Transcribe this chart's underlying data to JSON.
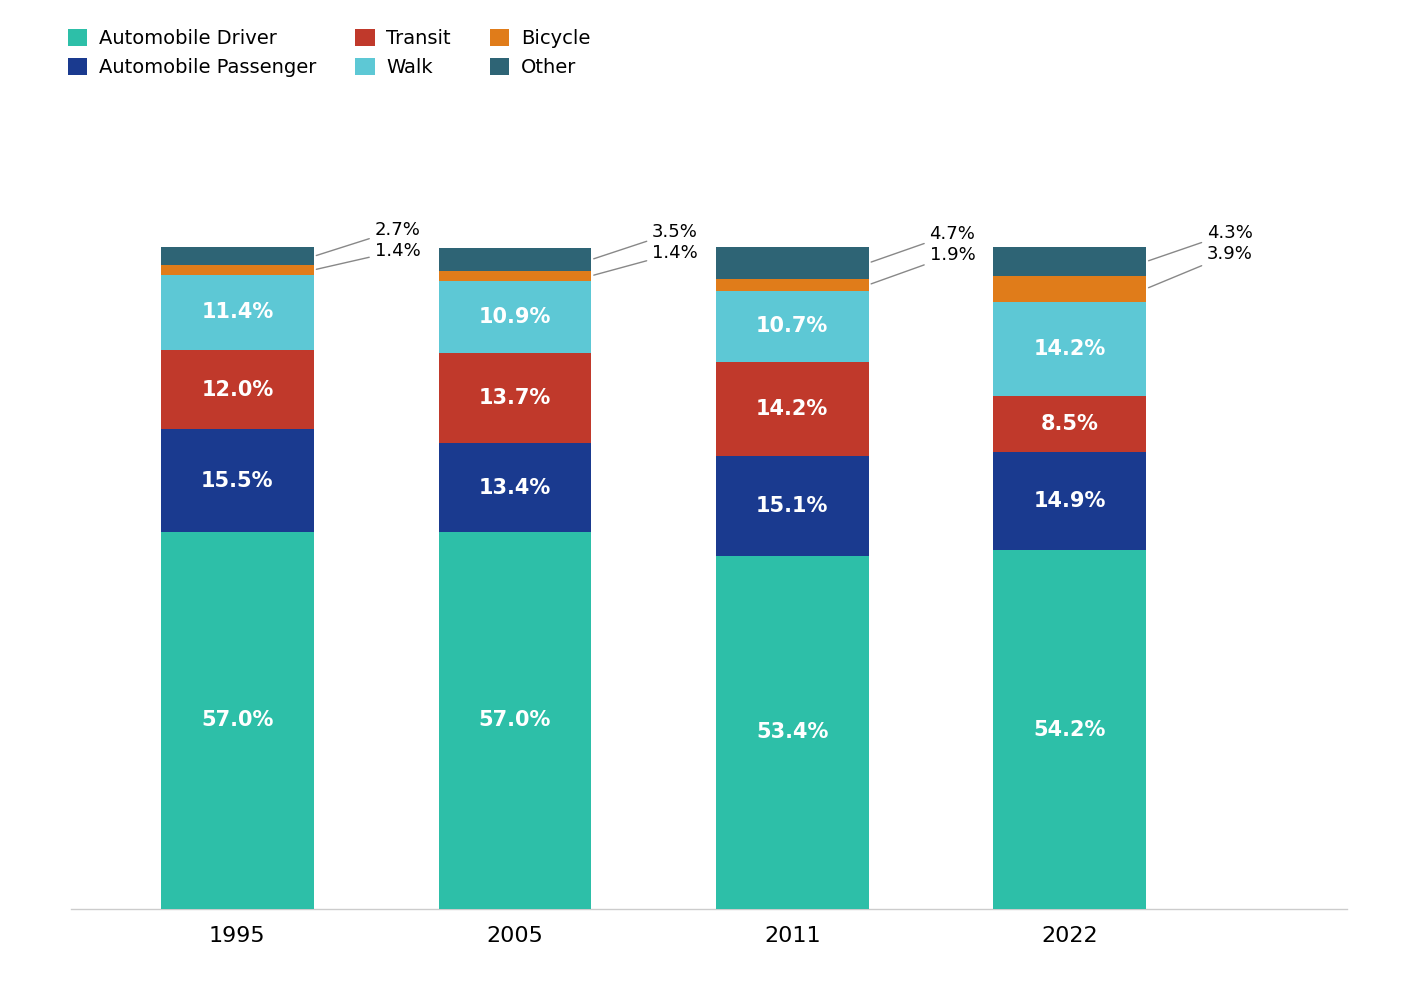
{
  "years": [
    "1995",
    "2005",
    "2011",
    "2022"
  ],
  "categories": [
    "Automobile Driver",
    "Automobile Passenger",
    "Transit",
    "Walk",
    "Bicycle",
    "Other"
  ],
  "values": {
    "Automobile Driver": [
      57.0,
      57.0,
      53.4,
      54.2
    ],
    "Automobile Passenger": [
      15.5,
      13.4,
      15.1,
      14.9
    ],
    "Transit": [
      12.0,
      13.7,
      14.2,
      8.5
    ],
    "Walk": [
      11.4,
      10.9,
      10.7,
      14.2
    ],
    "Bicycle": [
      1.4,
      1.4,
      1.9,
      3.9
    ],
    "Other": [
      2.7,
      3.5,
      4.7,
      4.3
    ]
  },
  "colors": {
    "Automobile Driver": "#2DBFA8",
    "Automobile Passenger": "#1A3A8F",
    "Transit": "#C0392B",
    "Walk": "#5DC8D5",
    "Bicycle": "#E07C1A",
    "Other": "#2E6475"
  },
  "bar_width": 0.55,
  "background_color": "#FFFFFF",
  "label_fontsize": 15,
  "axis_tick_fontsize": 16,
  "legend_fontsize": 14,
  "annotation_fontsize": 13
}
